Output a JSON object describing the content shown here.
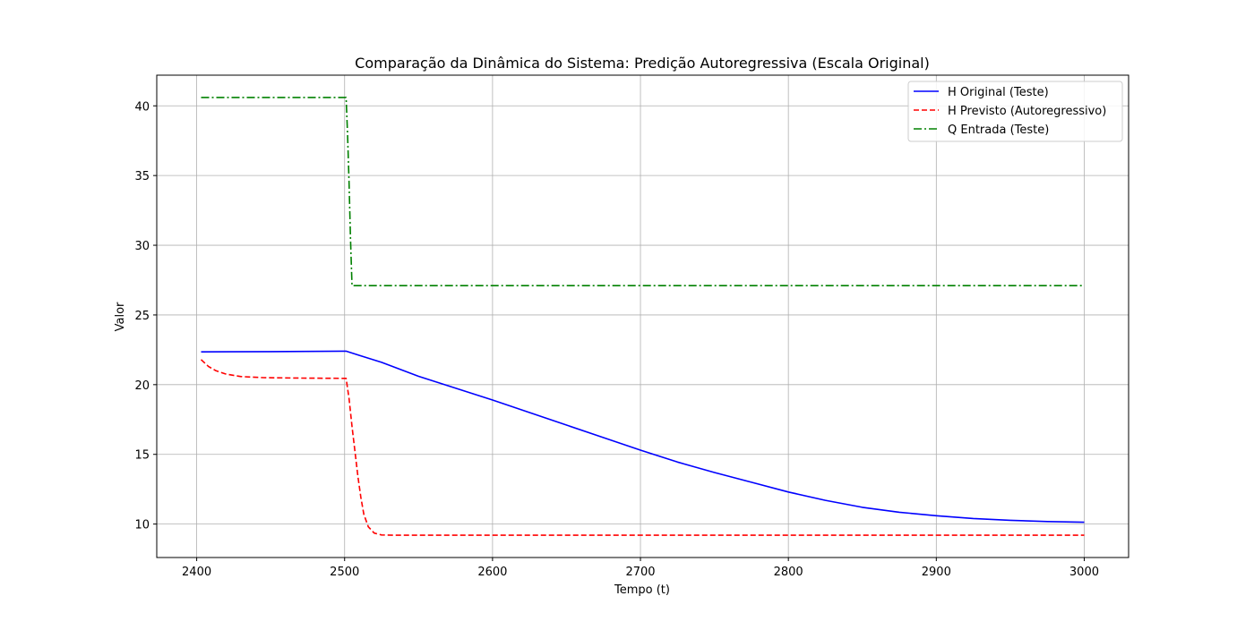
{
  "chart_data": {
    "type": "line",
    "title": "Comparação da Dinâmica do Sistema: Predição Autoregressiva (Escala Original)",
    "xlabel": "Tempo (t)",
    "ylabel": "Valor",
    "xlim": [
      2373,
      3030
    ],
    "ylim": [
      7.6,
      42.2
    ],
    "xticks": [
      2400,
      2500,
      2600,
      2700,
      2800,
      2900,
      3000
    ],
    "yticks": [
      10,
      15,
      20,
      25,
      30,
      35,
      40
    ],
    "grid": true,
    "legend_position": "top-right",
    "series": [
      {
        "name": "H Original (Teste)",
        "color": "#0000ff",
        "style": "solid",
        "points": [
          [
            2403,
            22.35
          ],
          [
            2450,
            22.37
          ],
          [
            2501,
            22.4
          ],
          [
            2510,
            22.1
          ],
          [
            2525,
            21.6
          ],
          [
            2550,
            20.6
          ],
          [
            2575,
            19.75
          ],
          [
            2600,
            18.9
          ],
          [
            2625,
            18.0
          ],
          [
            2650,
            17.1
          ],
          [
            2675,
            16.2
          ],
          [
            2700,
            15.3
          ],
          [
            2725,
            14.45
          ],
          [
            2750,
            13.7
          ],
          [
            2775,
            13.0
          ],
          [
            2800,
            12.3
          ],
          [
            2825,
            11.7
          ],
          [
            2850,
            11.2
          ],
          [
            2875,
            10.85
          ],
          [
            2900,
            10.6
          ],
          [
            2925,
            10.4
          ],
          [
            2950,
            10.27
          ],
          [
            2975,
            10.18
          ],
          [
            3000,
            10.13
          ]
        ]
      },
      {
        "name": "H Previsto (Autoregressivo)",
        "color": "#ff0000",
        "style": "dashed",
        "points": [
          [
            2403,
            21.8
          ],
          [
            2408,
            21.3
          ],
          [
            2413,
            21.0
          ],
          [
            2420,
            20.75
          ],
          [
            2430,
            20.58
          ],
          [
            2445,
            20.5
          ],
          [
            2470,
            20.47
          ],
          [
            2501,
            20.45
          ],
          [
            2503,
            19.0
          ],
          [
            2505,
            17.0
          ],
          [
            2507,
            15.2
          ],
          [
            2509,
            13.4
          ],
          [
            2511,
            11.9
          ],
          [
            2513,
            10.7
          ],
          [
            2516,
            9.8
          ],
          [
            2520,
            9.35
          ],
          [
            2525,
            9.22
          ],
          [
            2535,
            9.2
          ],
          [
            2600,
            9.2
          ],
          [
            2700,
            9.2
          ],
          [
            2800,
            9.2
          ],
          [
            2900,
            9.2
          ],
          [
            3000,
            9.2
          ]
        ]
      },
      {
        "name": "Q Entrada (Teste)",
        "color": "#008000",
        "style": "dashdot",
        "points": [
          [
            2403,
            40.6
          ],
          [
            2450,
            40.6
          ],
          [
            2501,
            40.6
          ],
          [
            2502,
            38.0
          ],
          [
            2503,
            34.5
          ],
          [
            2504,
            30.5
          ],
          [
            2505,
            27.1
          ],
          [
            2550,
            27.1
          ],
          [
            2600,
            27.1
          ],
          [
            2700,
            27.1
          ],
          [
            2800,
            27.1
          ],
          [
            2900,
            27.1
          ],
          [
            3000,
            27.1
          ]
        ]
      }
    ]
  }
}
